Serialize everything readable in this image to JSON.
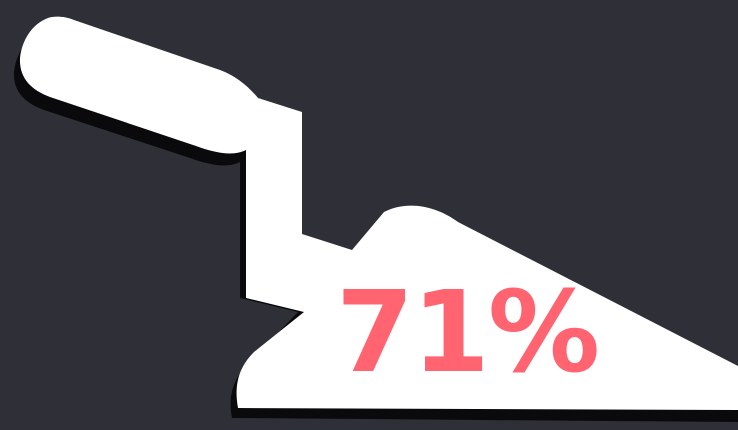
{
  "progress": {
    "label": "71%",
    "value": 71
  },
  "icon": {
    "name": "trowel-icon",
    "fill": "#ffffff",
    "shadow": "#0a0a0c"
  },
  "colors": {
    "background": "#2f2f38",
    "accent": "#ff6470"
  }
}
